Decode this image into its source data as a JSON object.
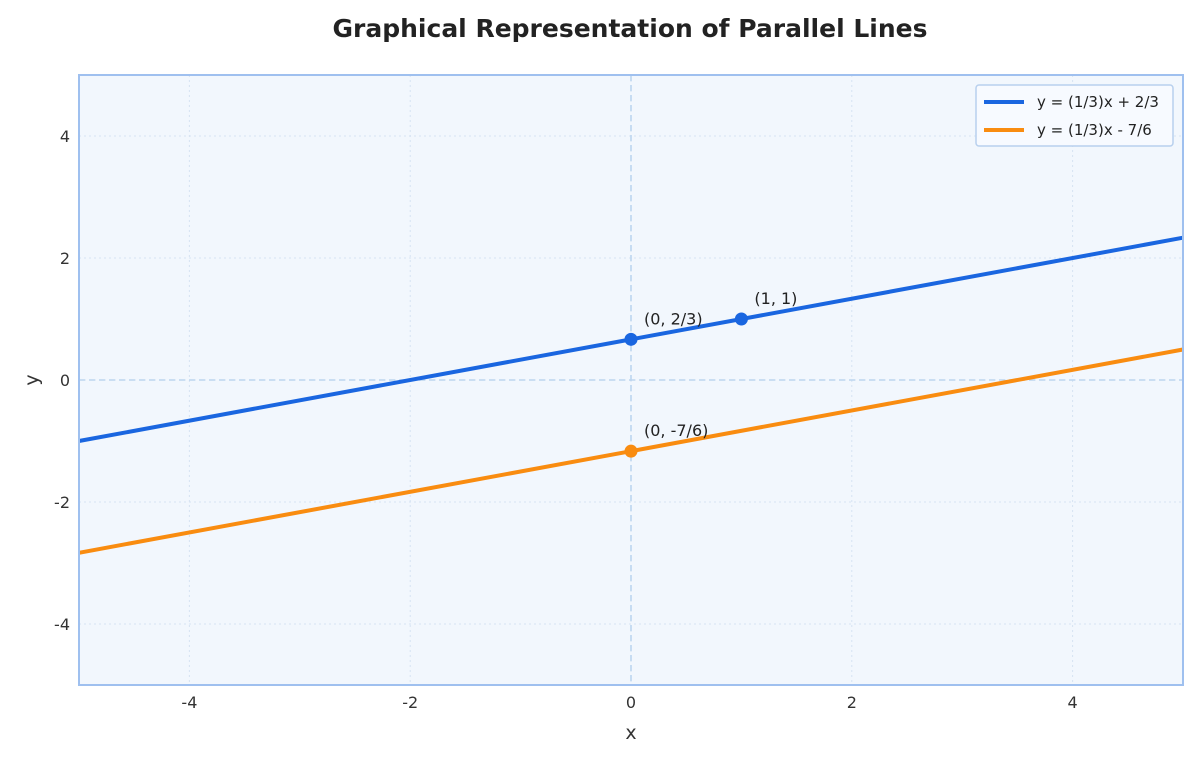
{
  "chart_data": {
    "type": "line",
    "title": "Graphical Representation of Parallel Lines",
    "xlabel": "x",
    "ylabel": "y",
    "xlim": [
      -5,
      5
    ],
    "ylim": [
      -5,
      5
    ],
    "xticks": [
      -4,
      -2,
      0,
      2,
      4
    ],
    "yticks": [
      -4,
      -2,
      0,
      2,
      4
    ],
    "grid": true,
    "legend_position": "top-right",
    "colors": {
      "plot_background": "#f2f7fd",
      "frame": "#9fc0ef",
      "grid": "#d6e3f2",
      "zero_lines": "#bcd5ef"
    },
    "series": [
      {
        "name": "y = (1/3)x + 2/3",
        "slope": 0.333333,
        "intercept": 0.666667,
        "color": "#1a66e0",
        "x": [
          -5,
          5
        ],
        "y": [
          -1,
          2.333333
        ]
      },
      {
        "name": "y = (1/3)x - 7/6",
        "slope": 0.333333,
        "intercept": -1.166667,
        "color": "#f98c10",
        "x": [
          -5,
          5
        ],
        "y": [
          -2.833333,
          0.5
        ]
      }
    ],
    "points": [
      {
        "x": 0,
        "y": 0.666667,
        "label": "(0, 2/3)",
        "color": "#1a66e0"
      },
      {
        "x": 1,
        "y": 1,
        "label": "(1, 1)",
        "color": "#1a66e0"
      },
      {
        "x": 0,
        "y": -1.166667,
        "label": "(0, -7/6)",
        "color": "#f98c10"
      }
    ]
  }
}
